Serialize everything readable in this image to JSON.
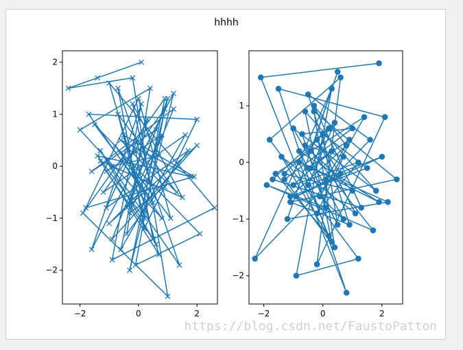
{
  "figure": {
    "suptitle": "hhhh",
    "watermark": "https://blog.csdn.net/FaustoPatton"
  },
  "colors": {
    "series": "#1f77b4",
    "axes": "#000000",
    "frame_bg": "#ffffff",
    "page_bg": "#f0f0f0"
  },
  "chart_data": [
    {
      "type": "line",
      "marker": "x",
      "title": "",
      "xlabel": "",
      "ylabel": "",
      "xlim": [
        -2.6,
        2.7
      ],
      "ylim": [
        -2.65,
        2.22
      ],
      "xticks": [
        -2,
        0,
        2
      ],
      "yticks": [
        -2,
        -1,
        0,
        1,
        2
      ],
      "grid": false,
      "series": [
        {
          "x": [
            0.1,
            -1.4,
            -2.4,
            -0.2,
            1.0,
            -1.9,
            0.9,
            -0.3,
            1.2,
            -1.6,
            0.1,
            -0.9,
            2.6,
            -1.0,
            0.6,
            -1.3,
            1.4,
            -0.7,
            0.2,
            2.0,
            -1.7,
            0.8,
            -2.0,
            0.4,
            -0.4,
            1.7,
            -1.1,
            0.3,
            -0.6,
            1.6,
            -1.2,
            0.9,
            -0.1,
            2.1,
            -1.5,
            0.5,
            -0.8,
            1.1,
            0.0,
            -1.8,
            1.9,
            -0.5,
            0.7,
            -1.3,
            1.5,
            -0.2,
            0.4,
            -1.0,
            2.0,
            -0.9,
            0.6,
            -1.6,
            1.2,
            -0.3,
            0.9,
            -0.6,
            1.8,
            -1.4,
            0.2,
            -0.7,
            1.3,
            -0.1,
            0.5,
            -1.1,
            0.8,
            -0.4,
            1.0,
            0.3,
            -0.9,
            0.7
          ],
          "y": [
            2.0,
            1.7,
            1.5,
            1.7,
            -2.5,
            -0.9,
            1.3,
            -2.0,
            1.4,
            -1.6,
            1.2,
            -1.8,
            -0.8,
            1.6,
            -1.5,
            0.3,
            -1.9,
            1.5,
            -1.2,
            0.9,
            1.0,
            -1.0,
            0.7,
            1.5,
            -1.3,
            0.3,
            -0.8,
            0.9,
            -1.6,
            0.6,
            -0.5,
            1.1,
            -1.9,
            -1.3,
            0.8,
            -0.7,
            0.4,
            -1.0,
            1.3,
            -0.8,
            -0.2,
            0.6,
            -1.7,
            0.1,
            -0.6,
            1.2,
            -0.3,
            -1.1,
            0.4,
            -1.4,
            0.7,
            -0.1,
            1.1,
            -0.9,
            -0.4,
            0.5,
            -0.2,
            0.2,
            -1.0,
            1.0,
            -0.5,
            0.3,
            -1.4,
            -0.1,
            0.6,
            -0.8,
            1.3,
            -0.3,
            0.0,
            0.2
          ]
        }
      ]
    },
    {
      "type": "line",
      "marker": "o",
      "title": "",
      "xlabel": "",
      "ylabel": "",
      "xlim": [
        -2.5,
        2.7
      ],
      "ylim": [
        -2.5,
        1.97
      ],
      "xticks": [
        -2,
        0,
        2
      ],
      "yticks": [
        -2,
        -1,
        0,
        1
      ],
      "grid": false,
      "series": [
        {
          "x": [
            1.9,
            -2.1,
            0.8,
            -1.5,
            2.1,
            -0.2,
            0.6,
            -1.8,
            1.2,
            -0.9,
            0.3,
            -2.3,
            1.6,
            -0.5,
            0.9,
            -1.1,
            2.5,
            -0.3,
            0.4,
            -1.3,
            1.0,
            -0.7,
            0.1,
            -1.9,
            1.7,
            -0.4,
            0.5,
            -1.2,
            2.2,
            -0.8,
            0.2,
            -1.6,
            1.4,
            -0.1,
            0.7,
            -1.0,
            1.8,
            -0.6,
            0.3,
            -1.4,
            1.1,
            -0.2,
            0.6,
            -0.9,
            2.0,
            -0.5,
            0.4,
            -1.7,
            1.3,
            -0.3,
            0.8,
            -1.1,
            1.5,
            0.0,
            0.5,
            -0.8,
            1.9,
            -0.4,
            0.2,
            -1.3,
            1.0,
            -0.6,
            0.7,
            -0.2,
            1.2,
            -1.0,
            0.3,
            -0.5,
            0.9,
            0.1
          ],
          "y": [
            1.75,
            1.5,
            -2.3,
            1.3,
            0.8,
            -1.8,
            1.5,
            0.4,
            -1.7,
            -2.0,
            1.3,
            -1.7,
            0.4,
            1.2,
            -1.1,
            -0.7,
            -0.3,
            0.9,
            -1.5,
            -0.3,
            0.6,
            0.5,
            -0.8,
            -0.4,
            -1.2,
            0.2,
            1.6,
            -1.0,
            -0.7,
            0.0,
            -1.3,
            -0.2,
            0.8,
            -0.6,
            -1.0,
            0.6,
            -0.5,
            0.9,
            -1.4,
            0.1,
            -0.9,
            0.4,
            -0.2,
            -0.6,
            0.1,
            -0.4,
            0.7,
            -0.3,
            -0.8,
            1.0,
            0.3,
            -0.6,
            -0.1,
            0.5,
            -1.1,
            0.2,
            -0.7,
            -0.1,
            0.6,
            -0.2,
            -0.5,
            0.3,
            0.1,
            -0.9,
            0.0,
            -0.4,
            0.2,
            -0.1,
            0.4,
            -0.3
          ]
        }
      ]
    }
  ]
}
